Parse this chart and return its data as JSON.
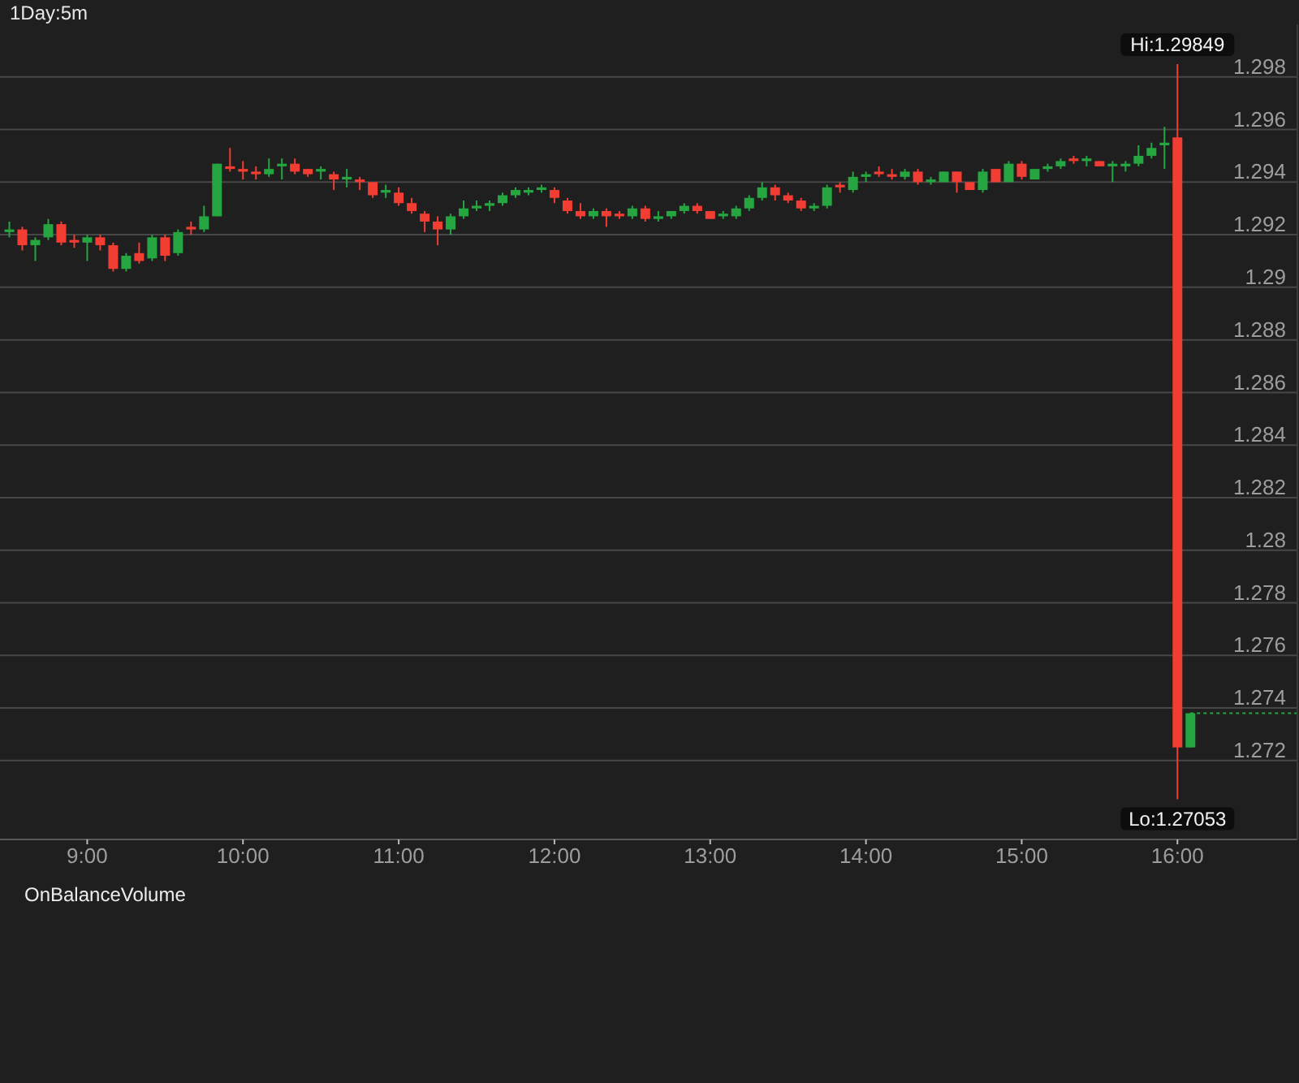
{
  "chart_data": {
    "type": "candlestick",
    "title": "1Day:5m",
    "x": [
      8.5,
      8.5833,
      8.6667,
      8.75,
      8.8333,
      8.9167,
      9,
      9.0833,
      9.1667,
      9.25,
      9.3333,
      9.4167,
      9.5,
      9.5833,
      9.6667,
      9.75,
      9.8333,
      9.9167,
      10,
      10.0833,
      10.1667,
      10.25,
      10.3333,
      10.4167,
      10.5,
      10.5833,
      10.6667,
      10.75,
      10.8333,
      10.9167,
      11,
      11.0833,
      11.1667,
      11.25,
      11.3333,
      11.4167,
      11.5,
      11.5833,
      11.6667,
      11.75,
      11.8333,
      11.9167,
      12,
      12.0833,
      12.1667,
      12.25,
      12.3333,
      12.4167,
      12.5,
      12.5833,
      12.6667,
      12.75,
      12.8333,
      12.9167,
      13,
      13.0833,
      13.1667,
      13.25,
      13.3333,
      13.4167,
      13.5,
      13.5833,
      13.6667,
      13.75,
      13.8333,
      13.9167,
      14,
      14.0833,
      14.1667,
      14.25,
      14.3333,
      14.4167,
      14.5,
      14.5833,
      14.6667,
      14.75,
      14.8333,
      14.9167,
      15,
      15.0833,
      15.1667,
      15.25,
      15.3333,
      15.4167,
      15.5,
      15.5833,
      15.6667,
      15.75,
      15.8333,
      15.9167,
      16,
      16.0833
    ],
    "ohlc": [
      [
        1.2921,
        1.2925,
        1.2919,
        1.2922
      ],
      [
        1.2922,
        1.2923,
        1.2914,
        1.2916
      ],
      [
        1.2916,
        1.2919,
        1.291,
        1.2918
      ],
      [
        1.2919,
        1.2926,
        1.2918,
        1.2924
      ],
      [
        1.2924,
        1.2925,
        1.2916,
        1.2917
      ],
      [
        1.2918,
        1.292,
        1.2915,
        1.2917
      ],
      [
        1.2917,
        1.292,
        1.291,
        1.2919
      ],
      [
        1.2919,
        1.292,
        1.2914,
        1.2916
      ],
      [
        1.2916,
        1.2917,
        1.2906,
        1.2907
      ],
      [
        1.2907,
        1.2913,
        1.2906,
        1.2912
      ],
      [
        1.2913,
        1.2917,
        1.2909,
        1.291
      ],
      [
        1.2911,
        1.292,
        1.291,
        1.2919
      ],
      [
        1.2919,
        1.292,
        1.291,
        1.2912
      ],
      [
        1.2913,
        1.2922,
        1.2912,
        1.2921
      ],
      [
        1.2923,
        1.2925,
        1.292,
        1.2922
      ],
      [
        1.2922,
        1.2931,
        1.2921,
        1.2927
      ],
      [
        1.2927,
        1.2947,
        1.2927,
        1.2947
      ],
      [
        1.2946,
        1.2953,
        1.2944,
        1.2945
      ],
      [
        1.2945,
        1.2948,
        1.2941,
        1.2944
      ],
      [
        1.2944,
        1.2946,
        1.2941,
        1.2943
      ],
      [
        1.2943,
        1.2949,
        1.2942,
        1.2945
      ],
      [
        1.2946,
        1.2949,
        1.2941,
        1.2947
      ],
      [
        1.2947,
        1.2949,
        1.2943,
        1.2944
      ],
      [
        1.2945,
        1.2945,
        1.2942,
        1.2943
      ],
      [
        1.2944,
        1.2946,
        1.2941,
        1.2945
      ],
      [
        1.2943,
        1.2944,
        1.2937,
        1.2941
      ],
      [
        1.2941,
        1.2945,
        1.2938,
        1.2942
      ],
      [
        1.2941,
        1.2942,
        1.2937,
        1.294
      ],
      [
        1.294,
        1.294,
        1.2934,
        1.2935
      ],
      [
        1.2936,
        1.2939,
        1.2934,
        1.2937
      ],
      [
        1.2936,
        1.2938,
        1.2931,
        1.2932
      ],
      [
        1.2932,
        1.2934,
        1.2928,
        1.2929
      ],
      [
        1.2928,
        1.2929,
        1.2921,
        1.2925
      ],
      [
        1.2925,
        1.2927,
        1.2916,
        1.2922
      ],
      [
        1.2922,
        1.2928,
        1.292,
        1.2927
      ],
      [
        1.2927,
        1.2933,
        1.2926,
        1.293
      ],
      [
        1.293,
        1.2933,
        1.2929,
        1.2931
      ],
      [
        1.2931,
        1.2933,
        1.2929,
        1.2932
      ],
      [
        1.2932,
        1.2936,
        1.2931,
        1.2935
      ],
      [
        1.2935,
        1.2938,
        1.2934,
        1.2937
      ],
      [
        1.2936,
        1.2938,
        1.2935,
        1.2937
      ],
      [
        1.2937,
        1.2939,
        1.2936,
        1.2938
      ],
      [
        1.2937,
        1.2938,
        1.2932,
        1.2934
      ],
      [
        1.2933,
        1.2934,
        1.2928,
        1.2929
      ],
      [
        1.2929,
        1.2932,
        1.2926,
        1.2927
      ],
      [
        1.2927,
        1.293,
        1.2926,
        1.2929
      ],
      [
        1.2929,
        1.293,
        1.2923,
        1.2927
      ],
      [
        1.2928,
        1.2929,
        1.2926,
        1.2927
      ],
      [
        1.2927,
        1.2931,
        1.2926,
        1.293
      ],
      [
        1.293,
        1.2931,
        1.2925,
        1.2926
      ],
      [
        1.2926,
        1.2929,
        1.2925,
        1.2927
      ],
      [
        1.2927,
        1.2929,
        1.2926,
        1.2929
      ],
      [
        1.2929,
        1.2932,
        1.2928,
        1.2931
      ],
      [
        1.2931,
        1.2932,
        1.2928,
        1.2929
      ],
      [
        1.2929,
        1.2929,
        1.2926,
        1.2926
      ],
      [
        1.2927,
        1.2929,
        1.2926,
        1.2928
      ],
      [
        1.2927,
        1.2931,
        1.2926,
        1.293
      ],
      [
        1.293,
        1.2935,
        1.2929,
        1.2934
      ],
      [
        1.2934,
        1.294,
        1.2933,
        1.2938
      ],
      [
        1.2938,
        1.2939,
        1.2933,
        1.2935
      ],
      [
        1.2935,
        1.2936,
        1.2932,
        1.2933
      ],
      [
        1.2933,
        1.2934,
        1.2929,
        1.293
      ],
      [
        1.293,
        1.2932,
        1.2929,
        1.2931
      ],
      [
        1.2931,
        1.2939,
        1.293,
        1.2938
      ],
      [
        1.2939,
        1.294,
        1.2936,
        1.2938
      ],
      [
        1.2937,
        1.2944,
        1.2936,
        1.2942
      ],
      [
        1.2942,
        1.2944,
        1.294,
        1.2943
      ],
      [
        1.2944,
        1.2946,
        1.2942,
        1.2943
      ],
      [
        1.2943,
        1.2945,
        1.2941,
        1.2942
      ],
      [
        1.2942,
        1.2945,
        1.2941,
        1.2944
      ],
      [
        1.2944,
        1.2945,
        1.2939,
        1.294
      ],
      [
        1.294,
        1.2942,
        1.2939,
        1.2941
      ],
      [
        1.294,
        1.2944,
        1.294,
        1.2944
      ],
      [
        1.2944,
        1.2944,
        1.2936,
        1.294
      ],
      [
        1.294,
        1.294,
        1.2937,
        1.2937
      ],
      [
        1.2937,
        1.2945,
        1.2936,
        1.2944
      ],
      [
        1.2945,
        1.2945,
        1.294,
        1.294
      ],
      [
        1.294,
        1.2948,
        1.294,
        1.2947
      ],
      [
        1.2947,
        1.2948,
        1.2941,
        1.2942
      ],
      [
        1.2941,
        1.2945,
        1.2941,
        1.2945
      ],
      [
        1.2945,
        1.2947,
        1.2944,
        1.2946
      ],
      [
        1.2946,
        1.2949,
        1.2945,
        1.2948
      ],
      [
        1.2949,
        1.295,
        1.2947,
        1.2948
      ],
      [
        1.2948,
        1.295,
        1.2946,
        1.2949
      ],
      [
        1.2948,
        1.2948,
        1.2946,
        1.2946
      ],
      [
        1.2946,
        1.2948,
        1.294,
        1.2947
      ],
      [
        1.2946,
        1.2948,
        1.2944,
        1.2947
      ],
      [
        1.2947,
        1.2954,
        1.2946,
        1.295
      ],
      [
        1.295,
        1.2955,
        1.2949,
        1.2953
      ],
      [
        1.2954,
        1.2961,
        1.2945,
        1.2955
      ],
      [
        1.2957,
        1.29849,
        1.27053,
        1.2725
      ],
      [
        1.2725,
        1.2738,
        1.2725,
        1.2738
      ]
    ],
    "colors": [
      "#26a641",
      "#f23d33",
      "#26a641",
      "#26a641",
      "#f23d33",
      "#f23d33",
      "#26a641",
      "#f23d33",
      "#f23d33",
      "#26a641",
      "#f23d33",
      "#26a641",
      "#f23d33",
      "#26a641",
      "#f23d33",
      "#26a641",
      "#26a641",
      "#f23d33",
      "#f23d33",
      "#f23d33",
      "#26a641",
      "#26a641",
      "#f23d33",
      "#f23d33",
      "#26a641",
      "#f23d33",
      "#26a641",
      "#f23d33",
      "#f23d33",
      "#26a641",
      "#f23d33",
      "#f23d33",
      "#f23d33",
      "#f23d33",
      "#26a641",
      "#26a641",
      "#26a641",
      "#26a641",
      "#26a641",
      "#26a641",
      "#26a641",
      "#26a641",
      "#f23d33",
      "#f23d33",
      "#f23d33",
      "#26a641",
      "#f23d33",
      "#f23d33",
      "#26a641",
      "#f23d33",
      "#26a641",
      "#26a641",
      "#26a641",
      "#f23d33",
      "#f23d33",
      "#26a641",
      "#26a641",
      "#26a641",
      "#26a641",
      "#f23d33",
      "#f23d33",
      "#f23d33",
      "#26a641",
      "#26a641",
      "#f23d33",
      "#26a641",
      "#26a641",
      "#f23d33",
      "#f23d33",
      "#26a641",
      "#f23d33",
      "#26a641",
      "#26a641",
      "#f23d33",
      "#f23d33",
      "#26a641",
      "#f23d33",
      "#26a641",
      "#f23d33",
      "#26a641",
      "#26a641",
      "#26a641",
      "#f23d33",
      "#26a641",
      "#f23d33",
      "#26a641",
      "#26a641",
      "#26a641",
      "#26a641",
      "#26a641",
      "#f23d33",
      "#26a641"
    ],
    "xlim": [
      8.44,
      16.77
    ],
    "xticks": [
      {
        "value": 9,
        "label": "9:00"
      },
      {
        "value": 10,
        "label": "10:00"
      },
      {
        "value": 11,
        "label": "11:00"
      },
      {
        "value": 12,
        "label": "12:00"
      },
      {
        "value": 13,
        "label": "13:00"
      },
      {
        "value": 14,
        "label": "14:00"
      },
      {
        "value": 15,
        "label": "15:00"
      },
      {
        "value": 16,
        "label": "16:00"
      }
    ],
    "ylim": [
      1.269,
      1.3
    ],
    "yticks": [
      1.272,
      1.274,
      1.276,
      1.278,
      1.28,
      1.282,
      1.284,
      1.286,
      1.288,
      1.29,
      1.292,
      1.294,
      1.296,
      1.298
    ],
    "grid": "y",
    "ref_lines": [
      {
        "axis": "y",
        "value": 1.2738,
        "color": "#26a641",
        "line_style": "dotted"
      }
    ],
    "annotations": [
      {
        "text": "Hi:1.29849",
        "x": 16,
        "y": 1.29849
      },
      {
        "text": "Lo:1.27053",
        "x": 16,
        "y": 1.27053
      },
      "OnBalanceVolume"
    ]
  }
}
